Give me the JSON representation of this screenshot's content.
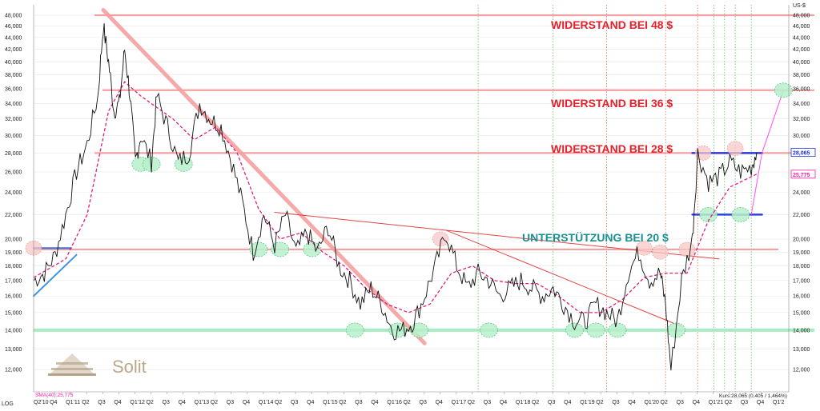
{
  "chart_data": {
    "type": "line",
    "scale": "log",
    "y_unit": "US-$",
    "scale_label": "LOG",
    "ylim": [
      11000,
      50000
    ],
    "y_ticks": [
      12000,
      13000,
      14000,
      15000,
      16000,
      17000,
      18000,
      19000,
      20000,
      22000,
      24000,
      26000,
      28000,
      30000,
      32000,
      34000,
      36000,
      38000,
      40000,
      42000,
      44000,
      46000,
      48000
    ],
    "x_ticks": [
      "Q2'10",
      "Q4",
      "Q1'11",
      "Q2",
      "Q3",
      "Q4",
      "Q1'12",
      "Q2",
      "Q3",
      "Q4",
      "Q1'13",
      "Q2",
      "Q3",
      "Q4",
      "Q1'14",
      "Q2",
      "Q3",
      "Q4",
      "Q1'15",
      "Q2",
      "Q3",
      "Q4",
      "Q1'16",
      "Q2",
      "Q3",
      "Q4",
      "Q1'17",
      "Q2",
      "Q3",
      "Q4",
      "Q1'18",
      "Q2",
      "Q3",
      "Q4",
      "Q1'19",
      "Q2",
      "Q3",
      "Q4",
      "Q1'20",
      "Q2",
      "Q3",
      "Q4",
      "Q1'21",
      "Q2",
      "Q3",
      "Q4",
      "Q1'2"
    ],
    "price_series": [
      {
        "d": "2010-04",
        "v": 17000
      },
      {
        "d": "2010-06",
        "v": 17500
      },
      {
        "d": "2010-08",
        "v": 18800
      },
      {
        "d": "2010-10",
        "v": 22000
      },
      {
        "d": "2010-12",
        "v": 26000
      },
      {
        "d": "2011-02",
        "v": 29000
      },
      {
        "d": "2011-04",
        "v": 35000
      },
      {
        "d": "2011-05",
        "v": 46000
      },
      {
        "d": "2011-06",
        "v": 40000
      },
      {
        "d": "2011-07",
        "v": 33000
      },
      {
        "d": "2011-08",
        "v": 34000
      },
      {
        "d": "2011-09",
        "v": 42000
      },
      {
        "d": "2011-10",
        "v": 35000
      },
      {
        "d": "2011-11",
        "v": 27000
      },
      {
        "d": "2011-12",
        "v": 30000
      },
      {
        "d": "2012-02",
        "v": 27000
      },
      {
        "d": "2012-03",
        "v": 35000
      },
      {
        "d": "2012-05",
        "v": 31000
      },
      {
        "d": "2012-07",
        "v": 27000
      },
      {
        "d": "2012-09",
        "v": 28000
      },
      {
        "d": "2012-11",
        "v": 34000
      },
      {
        "d": "2013-01",
        "v": 32000
      },
      {
        "d": "2013-03",
        "v": 31000
      },
      {
        "d": "2013-05",
        "v": 27000
      },
      {
        "d": "2013-07",
        "v": 23000
      },
      {
        "d": "2013-09",
        "v": 19000
      },
      {
        "d": "2013-11",
        "v": 22000
      },
      {
        "d": "2014-01",
        "v": 19500
      },
      {
        "d": "2014-03",
        "v": 22000
      },
      {
        "d": "2014-05",
        "v": 19000
      },
      {
        "d": "2014-07",
        "v": 20500
      },
      {
        "d": "2014-09",
        "v": 19000
      },
      {
        "d": "2014-11",
        "v": 21000
      },
      {
        "d": "2015-01",
        "v": 18000
      },
      {
        "d": "2015-03",
        "v": 17000
      },
      {
        "d": "2015-05",
        "v": 15500
      },
      {
        "d": "2015-07",
        "v": 16500
      },
      {
        "d": "2015-09",
        "v": 15500
      },
      {
        "d": "2015-11",
        "v": 14000
      },
      {
        "d": "2016-01",
        "v": 14000
      },
      {
        "d": "2016-03",
        "v": 14500
      },
      {
        "d": "2016-05",
        "v": 16000
      },
      {
        "d": "2016-07",
        "v": 18000
      },
      {
        "d": "2016-09",
        "v": 20500
      },
      {
        "d": "2016-11",
        "v": 18000
      },
      {
        "d": "2017-01",
        "v": 16500
      },
      {
        "d": "2017-03",
        "v": 17500
      },
      {
        "d": "2017-05",
        "v": 17000
      },
      {
        "d": "2017-07",
        "v": 16000
      },
      {
        "d": "2017-09",
        "v": 16500
      },
      {
        "d": "2017-11",
        "v": 17000
      },
      {
        "d": "2018-01",
        "v": 16500
      },
      {
        "d": "2018-03",
        "v": 16000
      },
      {
        "d": "2018-05",
        "v": 16500
      },
      {
        "d": "2018-07",
        "v": 15500
      },
      {
        "d": "2018-09",
        "v": 14500
      },
      {
        "d": "2018-11",
        "v": 14500
      },
      {
        "d": "2019-01",
        "v": 15500
      },
      {
        "d": "2019-03",
        "v": 15000
      },
      {
        "d": "2019-05",
        "v": 14500
      },
      {
        "d": "2019-07",
        "v": 17500
      },
      {
        "d": "2019-09",
        "v": 19000
      },
      {
        "d": "2019-11",
        "v": 17000
      },
      {
        "d": "2020-01",
        "v": 17500
      },
      {
        "d": "2020-02",
        "v": 15500
      },
      {
        "d": "2020-03",
        "v": 12000
      },
      {
        "d": "2020-05",
        "v": 17000
      },
      {
        "d": "2020-07",
        "v": 20000
      },
      {
        "d": "2020-08",
        "v": 28000
      },
      {
        "d": "2020-10",
        "v": 25000
      },
      {
        "d": "2020-12",
        "v": 25500
      },
      {
        "d": "2021-02",
        "v": 27000
      },
      {
        "d": "2021-04",
        "v": 26000
      },
      {
        "d": "2021-06",
        "v": 26500
      },
      {
        "d": "2021-07",
        "v": 28065
      }
    ],
    "sma_series": [
      {
        "d": "2010-04",
        "v": 17200
      },
      {
        "d": "2010-10",
        "v": 18500
      },
      {
        "d": "2011-02",
        "v": 22000
      },
      {
        "d": "2011-06",
        "v": 33000
      },
      {
        "d": "2011-09",
        "v": 37000
      },
      {
        "d": "2011-12",
        "v": 35000
      },
      {
        "d": "2012-06",
        "v": 32000
      },
      {
        "d": "2012-10",
        "v": 29500
      },
      {
        "d": "2013-02",
        "v": 31000
      },
      {
        "d": "2013-06",
        "v": 28000
      },
      {
        "d": "2013-10",
        "v": 22500
      },
      {
        "d": "2014-02",
        "v": 20000
      },
      {
        "d": "2014-06",
        "v": 20500
      },
      {
        "d": "2014-10",
        "v": 19000
      },
      {
        "d": "2015-02",
        "v": 18000
      },
      {
        "d": "2015-06",
        "v": 16500
      },
      {
        "d": "2015-10",
        "v": 15500
      },
      {
        "d": "2016-02",
        "v": 15000
      },
      {
        "d": "2016-06",
        "v": 15500
      },
      {
        "d": "2016-10",
        "v": 17500
      },
      {
        "d": "2017-02",
        "v": 18000
      },
      {
        "d": "2017-06",
        "v": 17000
      },
      {
        "d": "2017-10",
        "v": 16800
      },
      {
        "d": "2018-02",
        "v": 16800
      },
      {
        "d": "2018-06",
        "v": 16000
      },
      {
        "d": "2018-10",
        "v": 15000
      },
      {
        "d": "2019-02",
        "v": 15000
      },
      {
        "d": "2019-06",
        "v": 15800
      },
      {
        "d": "2019-10",
        "v": 17200
      },
      {
        "d": "2020-02",
        "v": 17500
      },
      {
        "d": "2020-06",
        "v": 17500
      },
      {
        "d": "2020-10",
        "v": 21500
      },
      {
        "d": "2021-02",
        "v": 24500
      },
      {
        "d": "2021-07",
        "v": 25775
      }
    ],
    "horizontal_lines": [
      {
        "label": "WIDERSTAND BEI 48 $",
        "v": 48000,
        "color": "#f4a0a0",
        "text_color": "#e8202a"
      },
      {
        "label": "WIDERSTAND BEI 36 $",
        "v": 35800,
        "color": "#f4a0a0",
        "text_color": "#e8202a"
      },
      {
        "label": "WIDERSTAND BEI 28 $",
        "v": 28000,
        "color": "#f4a0a0",
        "text_color": "#e8202a"
      },
      {
        "label": "UNTERSTÜTZUNG BEI 20 $",
        "v": 19200,
        "color": "#f4a0a0",
        "text_color": "#1a9090"
      },
      {
        "label": "",
        "v": 14000,
        "color": "#a8ecc4",
        "text_color": "#1a9090"
      }
    ],
    "trendlines": [
      {
        "from": {
          "d": "2011-05",
          "v": 49000
        },
        "to": {
          "d": "2016-05",
          "v": 13300
        },
        "color": "#f4a0a0",
        "width": 5
      },
      {
        "from": {
          "d": "2014-01",
          "v": 22200
        },
        "to": {
          "d": "2020-12",
          "v": 18500
        },
        "color": "#e03030",
        "width": 1
      },
      {
        "from": {
          "d": "2016-09",
          "v": 20700
        },
        "to": {
          "d": "2020-05",
          "v": 14200
        },
        "color": "#e03030",
        "width": 1
      },
      {
        "from": {
          "d": "2010-04",
          "v": 16000
        },
        "to": {
          "d": "2010-12",
          "v": 18800
        },
        "color": "#2a8ae0",
        "width": 2
      },
      {
        "from": {
          "d": "2010-04",
          "v": 19300
        },
        "to": {
          "d": "2010-11",
          "v": 19300
        },
        "color": "#2a60e0",
        "width": 2
      },
      {
        "from": {
          "d": "2020-07",
          "v": 28000
        },
        "to": {
          "d": "2021-08",
          "v": 28000
        },
        "color": "#1a30e0",
        "width": 2.5
      },
      {
        "from": {
          "d": "2020-07",
          "v": 22000
        },
        "to": {
          "d": "2021-08",
          "v": 22000
        },
        "color": "#1a30e0",
        "width": 2.5
      },
      {
        "from": {
          "d": "2021-06",
          "v": 22000
        },
        "to": {
          "d": "2021-08",
          "v": 28000
        },
        "color": "#ff3aff",
        "width": 1
      },
      {
        "from": {
          "d": "2021-08",
          "v": 28000
        },
        "to": {
          "d": "2021-12",
          "v": 35800
        },
        "color": "#ff3aff",
        "width": 1
      }
    ],
    "green_markers": [
      {
        "d": "2011-12",
        "v": 26800
      },
      {
        "d": "2012-02",
        "v": 26800
      },
      {
        "d": "2012-08",
        "v": 26800
      },
      {
        "d": "2013-10",
        "v": 19200
      },
      {
        "d": "2014-02",
        "v": 19200
      },
      {
        "d": "2014-08",
        "v": 19200
      },
      {
        "d": "2015-04",
        "v": 14000
      },
      {
        "d": "2015-12",
        "v": 14000
      },
      {
        "d": "2016-04",
        "v": 14000
      },
      {
        "d": "2017-05",
        "v": 14000
      },
      {
        "d": "2018-09",
        "v": 14000
      },
      {
        "d": "2019-01",
        "v": 14000
      },
      {
        "d": "2019-05",
        "v": 14000
      },
      {
        "d": "2020-04",
        "v": 14000
      },
      {
        "d": "2020-10",
        "v": 22000
      },
      {
        "d": "2021-04",
        "v": 22000
      },
      {
        "d": "2021-12",
        "v": 35800
      }
    ],
    "pink_markers": [
      {
        "d": "2010-04",
        "v": 19300
      },
      {
        "d": "2016-08",
        "v": 20000
      },
      {
        "d": "2019-10",
        "v": 19300
      },
      {
        "d": "2020-01",
        "v": 19000
      },
      {
        "d": "2020-06",
        "v": 19200
      },
      {
        "d": "2020-09",
        "v": 28000
      },
      {
        "d": "2021-03",
        "v": 28500
      }
    ],
    "vertical_lines": [
      {
        "d": "2017-03",
        "color": "#60c060"
      },
      {
        "d": "2018-05",
        "color": "#60c060"
      },
      {
        "d": "2019-03",
        "color": "#e07050"
      },
      {
        "d": "2020-02",
        "color": "#e07050"
      },
      {
        "d": "2020-08",
        "color": "#e07050"
      },
      {
        "d": "2020-11",
        "color": "#60c060"
      },
      {
        "d": "2021-01",
        "color": "#60c060"
      },
      {
        "d": "2021-03",
        "color": "#60c060"
      },
      {
        "d": "2021-06",
        "color": "#60c060"
      }
    ],
    "legend": {
      "sma_label": "SMA(40):25,775"
    },
    "last_price_badge": {
      "value": "28,065",
      "color": "#1a30e0"
    },
    "sma_badge": {
      "value": "25,775",
      "color": "#ff1aa0"
    },
    "footer_quote": "Kurs:28,065 (0,405 / 1,464%)"
  },
  "logo": {
    "text": "Solit",
    "color": "#b8a888"
  }
}
